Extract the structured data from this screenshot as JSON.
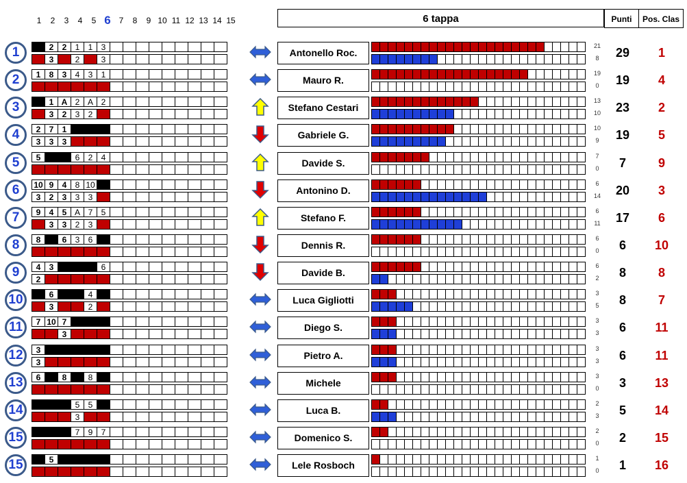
{
  "header": {
    "stage_numbers": [
      "1",
      "2",
      "3",
      "4",
      "5",
      "6",
      "7",
      "8",
      "9",
      "10",
      "11",
      "12",
      "13",
      "14",
      "15"
    ],
    "current_stage": "6",
    "title": "6 tappa",
    "points_label": "Punti",
    "pos_label": "Pos. Clas"
  },
  "colors": {
    "red": "#c00000",
    "blue": "#1f3fd8",
    "black": "#000000"
  },
  "bar_cells": 26,
  "participants": [
    {
      "rank": "1",
      "top": [
        "B",
        "2",
        "2",
        "1",
        "1",
        "3"
      ],
      "bottom": [
        "R",
        "3",
        "R",
        "2",
        "R",
        "3"
      ],
      "trend": "same",
      "name": "Antonello Roc.",
      "red": 21,
      "blue": 8,
      "points": "29",
      "pos": "1"
    },
    {
      "rank": "2",
      "top": [
        "1",
        "8",
        "3",
        "4",
        "3",
        "1"
      ],
      "bottom": [
        "R",
        "R",
        "R",
        "R",
        "R",
        "R"
      ],
      "trend": "same",
      "name": "Mauro R.",
      "red": 19,
      "blue": 0,
      "points": "19",
      "pos": "4"
    },
    {
      "rank": "3",
      "top": [
        "B",
        "1",
        "A",
        "2",
        "A",
        "2"
      ],
      "bottom": [
        "R",
        "3",
        "2",
        "3",
        "2",
        "R"
      ],
      "trend": "up",
      "name": "Stefano Cestari",
      "red": 13,
      "blue": 10,
      "points": "23",
      "pos": "2"
    },
    {
      "rank": "4",
      "top": [
        "2",
        "7",
        "1",
        "B",
        "B",
        "B"
      ],
      "bottom": [
        "3",
        "3",
        "3",
        "R",
        "R",
        "R"
      ],
      "trend": "down",
      "name": "Gabriele G.",
      "red": 10,
      "blue": 9,
      "points": "19",
      "pos": "5"
    },
    {
      "rank": "5",
      "top": [
        "5",
        "B",
        "B",
        "6",
        "2",
        "4"
      ],
      "bottom": [
        "R",
        "R",
        "R",
        "R",
        "R",
        "R"
      ],
      "trend": "up",
      "name": "Davide S.",
      "red": 7,
      "blue": 0,
      "points": "7",
      "pos": "9"
    },
    {
      "rank": "6",
      "top": [
        "10",
        "9",
        "4",
        "8",
        "10",
        "B"
      ],
      "bottom": [
        "3",
        "2",
        "3",
        "3",
        "3",
        "R"
      ],
      "trend": "down",
      "name": "Antonino D.",
      "red": 6,
      "blue": 14,
      "points": "20",
      "pos": "3"
    },
    {
      "rank": "7",
      "top": [
        "9",
        "4",
        "5",
        "A",
        "7",
        "5"
      ],
      "bottom": [
        "R",
        "3",
        "3",
        "2",
        "3",
        "R"
      ],
      "trend": "up",
      "name": "Stefano F.",
      "red": 6,
      "blue": 11,
      "points": "17",
      "pos": "6"
    },
    {
      "rank": "8",
      "top": [
        "8",
        "B",
        "6",
        "3",
        "6",
        "B"
      ],
      "bottom": [
        "R",
        "R",
        "R",
        "R",
        "R",
        "R"
      ],
      "trend": "down",
      "name": "Dennis R.",
      "red": 6,
      "blue": 0,
      "points": "6",
      "pos": "10"
    },
    {
      "rank": "9",
      "top": [
        "4",
        "3",
        "B",
        "B",
        "B",
        "6"
      ],
      "bottom": [
        "2",
        "R",
        "R",
        "R",
        "R",
        "R"
      ],
      "trend": "down",
      "name": "Davide B.",
      "red": 6,
      "blue": 2,
      "points": "8",
      "pos": "8"
    },
    {
      "rank": "10",
      "top": [
        "B",
        "6",
        "B",
        "B",
        "4",
        "B"
      ],
      "bottom": [
        "R",
        "3",
        "R",
        "R",
        "2",
        "R"
      ],
      "trend": "same",
      "name": "Luca Gigliotti",
      "red": 3,
      "blue": 5,
      "points": "8",
      "pos": "7"
    },
    {
      "rank": "11",
      "top": [
        "7",
        "10",
        "7",
        "B",
        "B",
        "B"
      ],
      "bottom": [
        "R",
        "R",
        "3",
        "R",
        "R",
        "R"
      ],
      "trend": "same",
      "name": "Diego S.",
      "red": 3,
      "blue": 3,
      "points": "6",
      "pos": "11"
    },
    {
      "rank": "12",
      "top": [
        "3",
        "B",
        "B",
        "B",
        "B",
        "B"
      ],
      "bottom": [
        "3",
        "R",
        "R",
        "R",
        "R",
        "R"
      ],
      "trend": "same",
      "name": "Pietro A.",
      "red": 3,
      "blue": 3,
      "points": "6",
      "pos": "11"
    },
    {
      "rank": "13",
      "top": [
        "6",
        "B",
        "8",
        "B",
        "8",
        "B"
      ],
      "bottom": [
        "R",
        "R",
        "R",
        "R",
        "R",
        "R"
      ],
      "trend": "same",
      "name": "Michele",
      "red": 3,
      "blue": 0,
      "points": "3",
      "pos": "13"
    },
    {
      "rank": "14",
      "top": [
        "B",
        "B",
        "B",
        "5",
        "5",
        "B"
      ],
      "bottom": [
        "R",
        "R",
        "R",
        "3",
        "R",
        "R"
      ],
      "trend": "same",
      "name": "Luca B.",
      "red": 2,
      "blue": 3,
      "points": "5",
      "pos": "14"
    },
    {
      "rank": "15",
      "top": [
        "B",
        "B",
        "B",
        "7",
        "9",
        "7"
      ],
      "bottom": [
        "R",
        "R",
        "R",
        "R",
        "R",
        "R"
      ],
      "trend": "same",
      "name": "Domenico S.",
      "red": 2,
      "blue": 0,
      "points": "2",
      "pos": "15"
    },
    {
      "rank": "15",
      "top": [
        "B",
        "5",
        "B",
        "B",
        "B",
        "B"
      ],
      "bottom": [
        "R",
        "R",
        "R",
        "R",
        "R",
        "R"
      ],
      "trend": "same",
      "name": "Lele Rosboch",
      "red": 1,
      "blue": 0,
      "points": "1",
      "pos": "16"
    }
  ]
}
